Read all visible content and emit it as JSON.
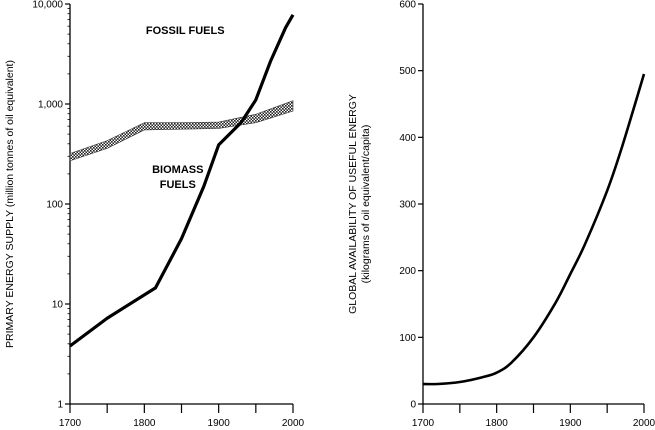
{
  "chart_data": [
    {
      "type": "line",
      "title": "",
      "xlabel": "",
      "ylabel": "PRIMARY ENERGY SUPPLY (million tonnes of oil equivalent)",
      "yscale": "log",
      "xlim": [
        1700,
        2000
      ],
      "ylim": [
        1,
        10000
      ],
      "x_ticks": [
        1700,
        1800,
        1900,
        2000
      ],
      "x_minor_ticks": [
        1750,
        1850,
        1950
      ],
      "y_ticks": [
        1,
        10,
        100,
        1000,
        10000
      ],
      "y_tick_labels": [
        "1",
        "10",
        "100",
        "1,000",
        "10,000"
      ],
      "grid": false,
      "series": [
        {
          "name": "FOSSIL FUELS",
          "style": "thick-black",
          "color": "#000000",
          "x": [
            1700,
            1750,
            1815,
            1850,
            1880,
            1900,
            1930,
            1950,
            1970,
            1990,
            2000
          ],
          "y": [
            3.8,
            7.2,
            14.5,
            45,
            150,
            390,
            650,
            1100,
            2700,
            5800,
            7800
          ]
        },
        {
          "name": "BIOMASS FUELS",
          "style": "hatched-band",
          "color": "#555555",
          "x": [
            1700,
            1750,
            1800,
            1850,
            1900,
            1950,
            2000
          ],
          "y_low": [
            270,
            360,
            550,
            560,
            570,
            650,
            850
          ],
          "y_high": [
            320,
            430,
            650,
            650,
            660,
            790,
            1080
          ]
        }
      ],
      "annotations": [
        {
          "text": "FOSSIL FUELS",
          "x": 1855,
          "y": 5000
        },
        {
          "text": "BIOMASS",
          "x": 1845,
          "y": 205
        },
        {
          "text": "FUELS",
          "x": 1845,
          "y": 145
        }
      ]
    },
    {
      "type": "line",
      "title": "",
      "xlabel": "",
      "ylabel": "GLOBAL AVAILABILITY OF USEFUL ENERGY",
      "ylabel_sub": "(kilograms of oil equivalent/capita)",
      "xlim": [
        1700,
        2000
      ],
      "ylim": [
        0,
        600
      ],
      "x_ticks": [
        1700,
        1800,
        1900,
        2000
      ],
      "x_minor_ticks": [
        1750,
        1850,
        1950
      ],
      "y_ticks": [
        0,
        100,
        200,
        300,
        400,
        500,
        600
      ],
      "grid": false,
      "series": [
        {
          "style": "thick-black",
          "color": "#000000",
          "x": [
            1700,
            1720,
            1750,
            1780,
            1800,
            1820,
            1850,
            1880,
            1900,
            1920,
            1950,
            1970,
            2000
          ],
          "y": [
            30,
            30,
            33,
            40,
            47,
            62,
            100,
            152,
            195,
            240,
            320,
            385,
            495
          ]
        }
      ]
    }
  ]
}
